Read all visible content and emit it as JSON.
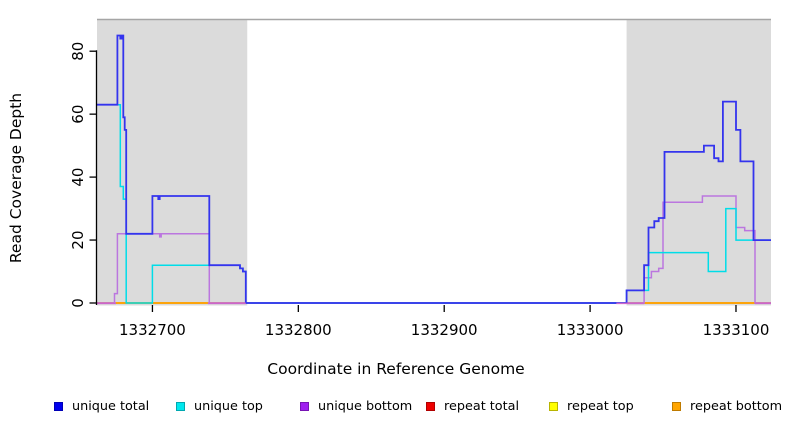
{
  "figure": {
    "x_axis": {
      "title": "Coordinate in Reference Genome",
      "tick_labels": [
        "1332700",
        "1332800",
        "1332900",
        "1333000",
        "1333100"
      ]
    },
    "y_axis": {
      "title": "Read Coverage Depth",
      "tick_labels": [
        "0",
        "20",
        "40",
        "60",
        "80"
      ]
    },
    "legend": [
      {
        "label": "unique total",
        "color": "#0000EE",
        "border": "#0000B6"
      },
      {
        "label": "unique top",
        "color": "#00E8EE",
        "border": "#00A8B0"
      },
      {
        "label": "unique bottom",
        "color": "#A020F0",
        "border": "#7714B4"
      },
      {
        "label": "repeat total",
        "color": "#EE0000",
        "border": "#B00000"
      },
      {
        "label": "repeat top",
        "color": "#FFFF00",
        "border": "#B8B400"
      },
      {
        "label": "repeat bottom",
        "color": "#FFA500",
        "border": "#BE7A00"
      }
    ],
    "colors": {
      "shaded_region": "#DBDBDB",
      "top_border_line": "#A5A5A5",
      "axis": "#000000",
      "line_unique_total": "#3434EE",
      "line_unique_top": "#00DDE8",
      "line_unique_bottom": "#BB76DF",
      "line_repeat_total": "#DD2222",
      "line_repeat_top": "#F2F200",
      "line_repeat_bottom": "#FFA500",
      "baseline_overlap": "#CC66CC"
    }
  },
  "chart_data": {
    "type": "line",
    "subtype": "step-coverage",
    "title": "",
    "xlabel": "Coordinate in Reference Genome",
    "ylabel": "Read Coverage Depth",
    "xlim": [
      1332662,
      1333124
    ],
    "ylim": [
      0,
      87
    ],
    "x_ticks": [
      1332700,
      1332800,
      1332900,
      1333000,
      1333100
    ],
    "y_ticks": [
      0,
      20,
      40,
      60,
      80
    ],
    "grid": false,
    "legend_position": "bottom",
    "shaded_regions": [
      {
        "x1": 1332662,
        "x2": 1332765
      },
      {
        "x1": 1333025,
        "x2": 1333124
      }
    ],
    "series": [
      {
        "name": "unique total",
        "step_points": [
          [
            1332662,
            63
          ],
          [
            1332676,
            85
          ],
          [
            1332678,
            84
          ],
          [
            1332679,
            85
          ],
          [
            1332680,
            59
          ],
          [
            1332681,
            55
          ],
          [
            1332682,
            22
          ],
          [
            1332700,
            34
          ],
          [
            1332704,
            33
          ],
          [
            1332705,
            34
          ],
          [
            1332739,
            12
          ],
          [
            1332760,
            11
          ],
          [
            1332762,
            10
          ],
          [
            1332764,
            0
          ],
          [
            1333025,
            4
          ],
          [
            1333037,
            12
          ],
          [
            1333040,
            24
          ],
          [
            1333044,
            26
          ],
          [
            1333047,
            27
          ],
          [
            1333051,
            48
          ],
          [
            1333078,
            50
          ],
          [
            1333085,
            46
          ],
          [
            1333088,
            45
          ],
          [
            1333091,
            64
          ],
          [
            1333100,
            55
          ],
          [
            1333103,
            45
          ],
          [
            1333112,
            20
          ]
        ]
      },
      {
        "name": "unique top",
        "step_points": [
          [
            1332662,
            63
          ],
          [
            1332678,
            37
          ],
          [
            1332680,
            33
          ],
          [
            1332682,
            0
          ],
          [
            1332700,
            12
          ],
          [
            1332760,
            11
          ],
          [
            1332762,
            10
          ],
          [
            1332764,
            0
          ],
          [
            1333025,
            4
          ],
          [
            1333040,
            16
          ],
          [
            1333081,
            10
          ],
          [
            1333093,
            30
          ],
          [
            1333100,
            20
          ]
        ]
      },
      {
        "name": "unique bottom",
        "step_points": [
          [
            1332662,
            0
          ],
          [
            1332674,
            3
          ],
          [
            1332676,
            22
          ],
          [
            1332705,
            21
          ],
          [
            1332706,
            22
          ],
          [
            1332739,
            0
          ],
          [
            1333037,
            8
          ],
          [
            1333042,
            10
          ],
          [
            1333047,
            11
          ],
          [
            1333050,
            32
          ],
          [
            1333077,
            34
          ],
          [
            1333100,
            24
          ],
          [
            1333106,
            23
          ],
          [
            1333113,
            0
          ]
        ]
      },
      {
        "name": "repeat total",
        "step_points": [
          [
            1332662,
            0
          ]
        ]
      },
      {
        "name": "repeat top",
        "step_points": [
          [
            1332662,
            0
          ]
        ]
      },
      {
        "name": "repeat bottom",
        "step_points": [
          [
            1332662,
            0
          ]
        ],
        "visible_zero_segments": [
          [
            1332675,
            1332738
          ],
          [
            1333037,
            1333113
          ]
        ]
      }
    ],
    "baseline_overlap_segments": [
      {
        "series": "unique bottom",
        "x": [
          1332662,
          1332675
        ]
      },
      {
        "series": "unique bottom",
        "x": [
          1332738,
          1332764
        ]
      },
      {
        "series": "unique bottom",
        "x": [
          1333018,
          1333037
        ]
      },
      {
        "series": "unique bottom",
        "x": [
          1333113,
          1333124
        ]
      }
    ]
  }
}
